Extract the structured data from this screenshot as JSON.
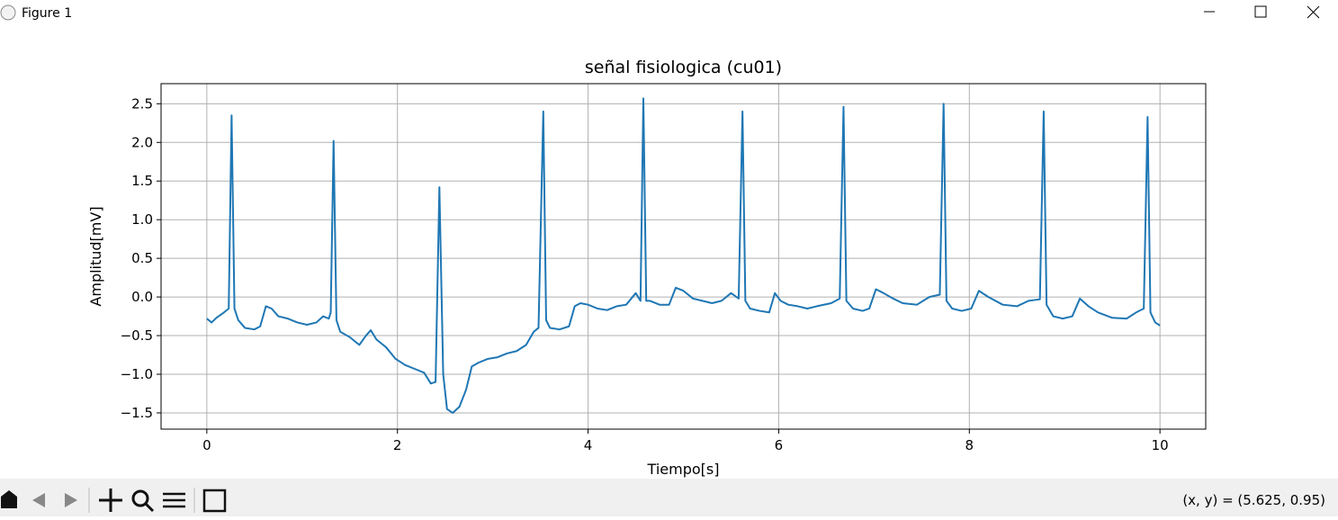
{
  "window": {
    "title": "Figure 1"
  },
  "chart_data": {
    "type": "line",
    "title": "señal fisiologica (cu01)",
    "x_label": "Tiempo[s]",
    "y_label": "Amplitud[mV]",
    "color": "#1f77b4",
    "grid": true,
    "xlim": [
      -0.48,
      10.48
    ],
    "ylim": [
      -1.71,
      2.76
    ],
    "xticks": [
      0,
      2,
      4,
      6,
      8,
      10
    ],
    "yticks": [
      {
        "value": -1.5,
        "label": "−1.5"
      },
      {
        "value": -1.0,
        "label": "−1.0"
      },
      {
        "value": -0.5,
        "label": "−0.5"
      },
      {
        "value": 0.0,
        "label": "0.0"
      },
      0.5,
      {
        "value": 1.0,
        "label": "1.0"
      },
      1.5,
      {
        "value": 2.0,
        "label": "2.0"
      },
      2.5
    ],
    "x": [
      0.0,
      0.05,
      0.1,
      0.18,
      0.23,
      0.26,
      0.29,
      0.33,
      0.4,
      0.5,
      0.56,
      0.62,
      0.68,
      0.75,
      0.85,
      0.95,
      1.05,
      1.15,
      1.22,
      1.28,
      1.3,
      1.33,
      1.36,
      1.4,
      1.5,
      1.6,
      1.67,
      1.72,
      1.78,
      1.88,
      1.98,
      2.08,
      2.18,
      2.28,
      2.35,
      2.4,
      2.44,
      2.48,
      2.52,
      2.58,
      2.65,
      2.72,
      2.78,
      2.85,
      2.95,
      3.05,
      3.15,
      3.25,
      3.35,
      3.43,
      3.48,
      3.53,
      3.56,
      3.6,
      3.7,
      3.8,
      3.86,
      3.92,
      4.0,
      4.1,
      4.2,
      4.3,
      4.4,
      4.5,
      4.55,
      4.58,
      4.61,
      4.65,
      4.75,
      4.85,
      4.92,
      5.0,
      5.1,
      5.2,
      5.3,
      5.4,
      5.5,
      5.58,
      5.62,
      5.65,
      5.7,
      5.8,
      5.9,
      5.96,
      6.02,
      6.1,
      6.2,
      6.3,
      6.4,
      6.55,
      6.64,
      6.68,
      6.71,
      6.78,
      6.88,
      6.95,
      7.02,
      7.1,
      7.2,
      7.3,
      7.45,
      7.58,
      7.69,
      7.73,
      7.76,
      7.82,
      7.92,
      8.02,
      8.1,
      8.2,
      8.35,
      8.5,
      8.62,
      8.74,
      8.78,
      8.81,
      8.88,
      8.98,
      9.08,
      9.16,
      9.25,
      9.35,
      9.5,
      9.65,
      9.75,
      9.83,
      9.87,
      9.9,
      9.95,
      10.0
    ],
    "values": [
      -0.28,
      -0.33,
      -0.27,
      -0.2,
      -0.15,
      2.35,
      -0.15,
      -0.3,
      -0.4,
      -0.42,
      -0.38,
      -0.12,
      -0.15,
      -0.25,
      -0.28,
      -0.33,
      -0.36,
      -0.33,
      -0.25,
      -0.28,
      -0.2,
      2.02,
      -0.3,
      -0.45,
      -0.52,
      -0.62,
      -0.5,
      -0.43,
      -0.55,
      -0.65,
      -0.8,
      -0.88,
      -0.93,
      -0.98,
      -1.12,
      -1.1,
      1.42,
      -1.0,
      -1.45,
      -1.5,
      -1.42,
      -1.2,
      -0.9,
      -0.85,
      -0.8,
      -0.78,
      -0.73,
      -0.7,
      -0.62,
      -0.45,
      -0.4,
      2.4,
      -0.3,
      -0.4,
      -0.42,
      -0.38,
      -0.12,
      -0.08,
      -0.1,
      -0.15,
      -0.17,
      -0.12,
      -0.1,
      0.05,
      -0.05,
      2.57,
      -0.05,
      -0.05,
      -0.1,
      -0.1,
      0.12,
      0.08,
      -0.02,
      -0.05,
      -0.08,
      -0.05,
      0.05,
      -0.02,
      2.4,
      -0.05,
      -0.15,
      -0.18,
      -0.2,
      0.05,
      -0.05,
      -0.1,
      -0.12,
      -0.15,
      -0.12,
      -0.08,
      -0.02,
      2.46,
      -0.05,
      -0.15,
      -0.18,
      -0.15,
      0.1,
      0.05,
      -0.02,
      -0.08,
      -0.1,
      0.0,
      0.03,
      2.5,
      -0.05,
      -0.15,
      -0.18,
      -0.15,
      0.08,
      0.0,
      -0.1,
      -0.12,
      -0.05,
      -0.03,
      2.4,
      -0.1,
      -0.25,
      -0.28,
      -0.25,
      -0.02,
      -0.12,
      -0.2,
      -0.27,
      -0.28,
      -0.2,
      -0.15,
      2.33,
      -0.2,
      -0.33,
      -0.37
    ]
  },
  "toolbar": {
    "coordinates": "(x, y) = (5.625, 0.95)"
  }
}
